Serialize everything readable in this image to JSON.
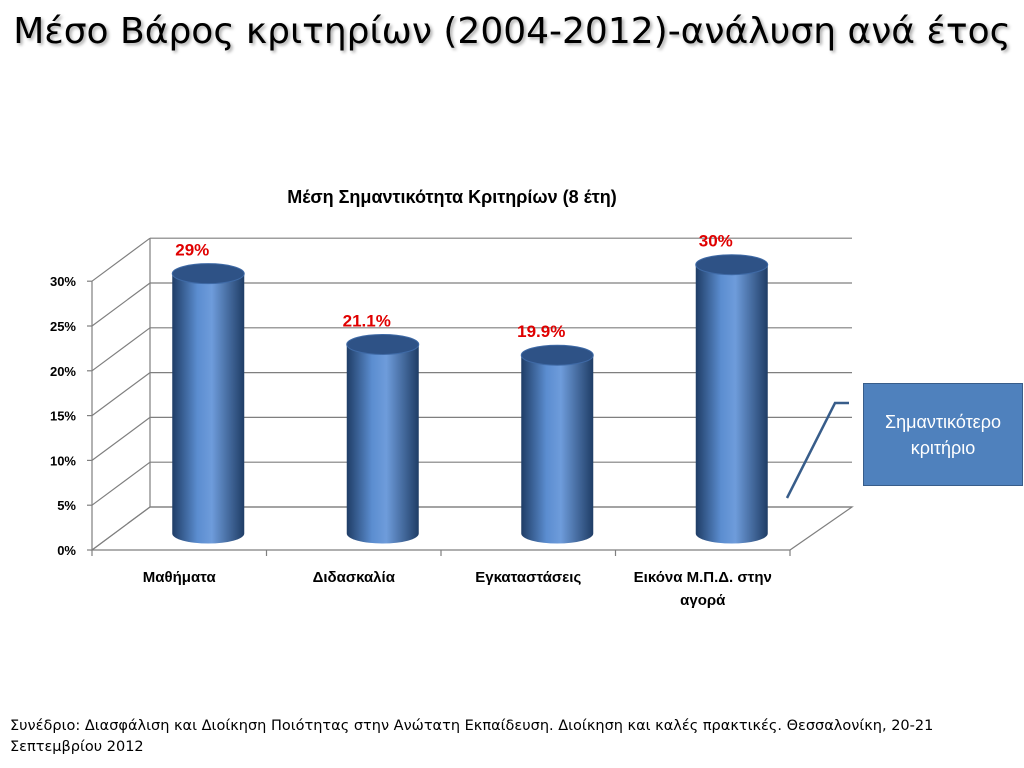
{
  "slide": {
    "title": "Μέσο Βάρος κριτηρίων (2004-2012)-ανάλυση ανά έτος",
    "footer": "Συνέδριο: Διασφάλιση και Διοίκηση Ποιότητας στην Ανώτατη Εκπαίδευση. Διοίκηση και καλές πρακτικές. Θεσσαλονίκη, 20-21 Σεπτεμβρίου 2012",
    "callout": "Σημαντικότερο κριτήριο"
  },
  "chart_data": {
    "type": "bar",
    "title": "Μέση Σημαντικότητα Κριτηρίων (8 έτη)",
    "categories": [
      "Μαθήματα",
      "Διδασκαλία",
      "Εγκαταστάσεις",
      "Εικόνα Μ.Π.Δ. στην αγορά"
    ],
    "values": [
      29,
      21.1,
      19.9,
      30
    ],
    "data_labels": [
      "29%",
      "21.1%",
      "19.9%",
      "30%"
    ],
    "ylim": [
      0,
      30
    ],
    "y_ticks": [
      0,
      5,
      10,
      15,
      20,
      25,
      30
    ],
    "y_tick_labels": [
      "0%",
      "5%",
      "10%",
      "15%",
      "20%",
      "25%",
      "30%"
    ],
    "xlabel": "",
    "ylabel": "",
    "grid": true,
    "legend": "none",
    "style": "3d-cylinder",
    "colors": {
      "bar": "#4f81bd",
      "bar_dark": "#2c4d75",
      "bar_light": "#7ea4d6",
      "data_label": "#e00000",
      "grid": "#7f7f7f"
    }
  }
}
